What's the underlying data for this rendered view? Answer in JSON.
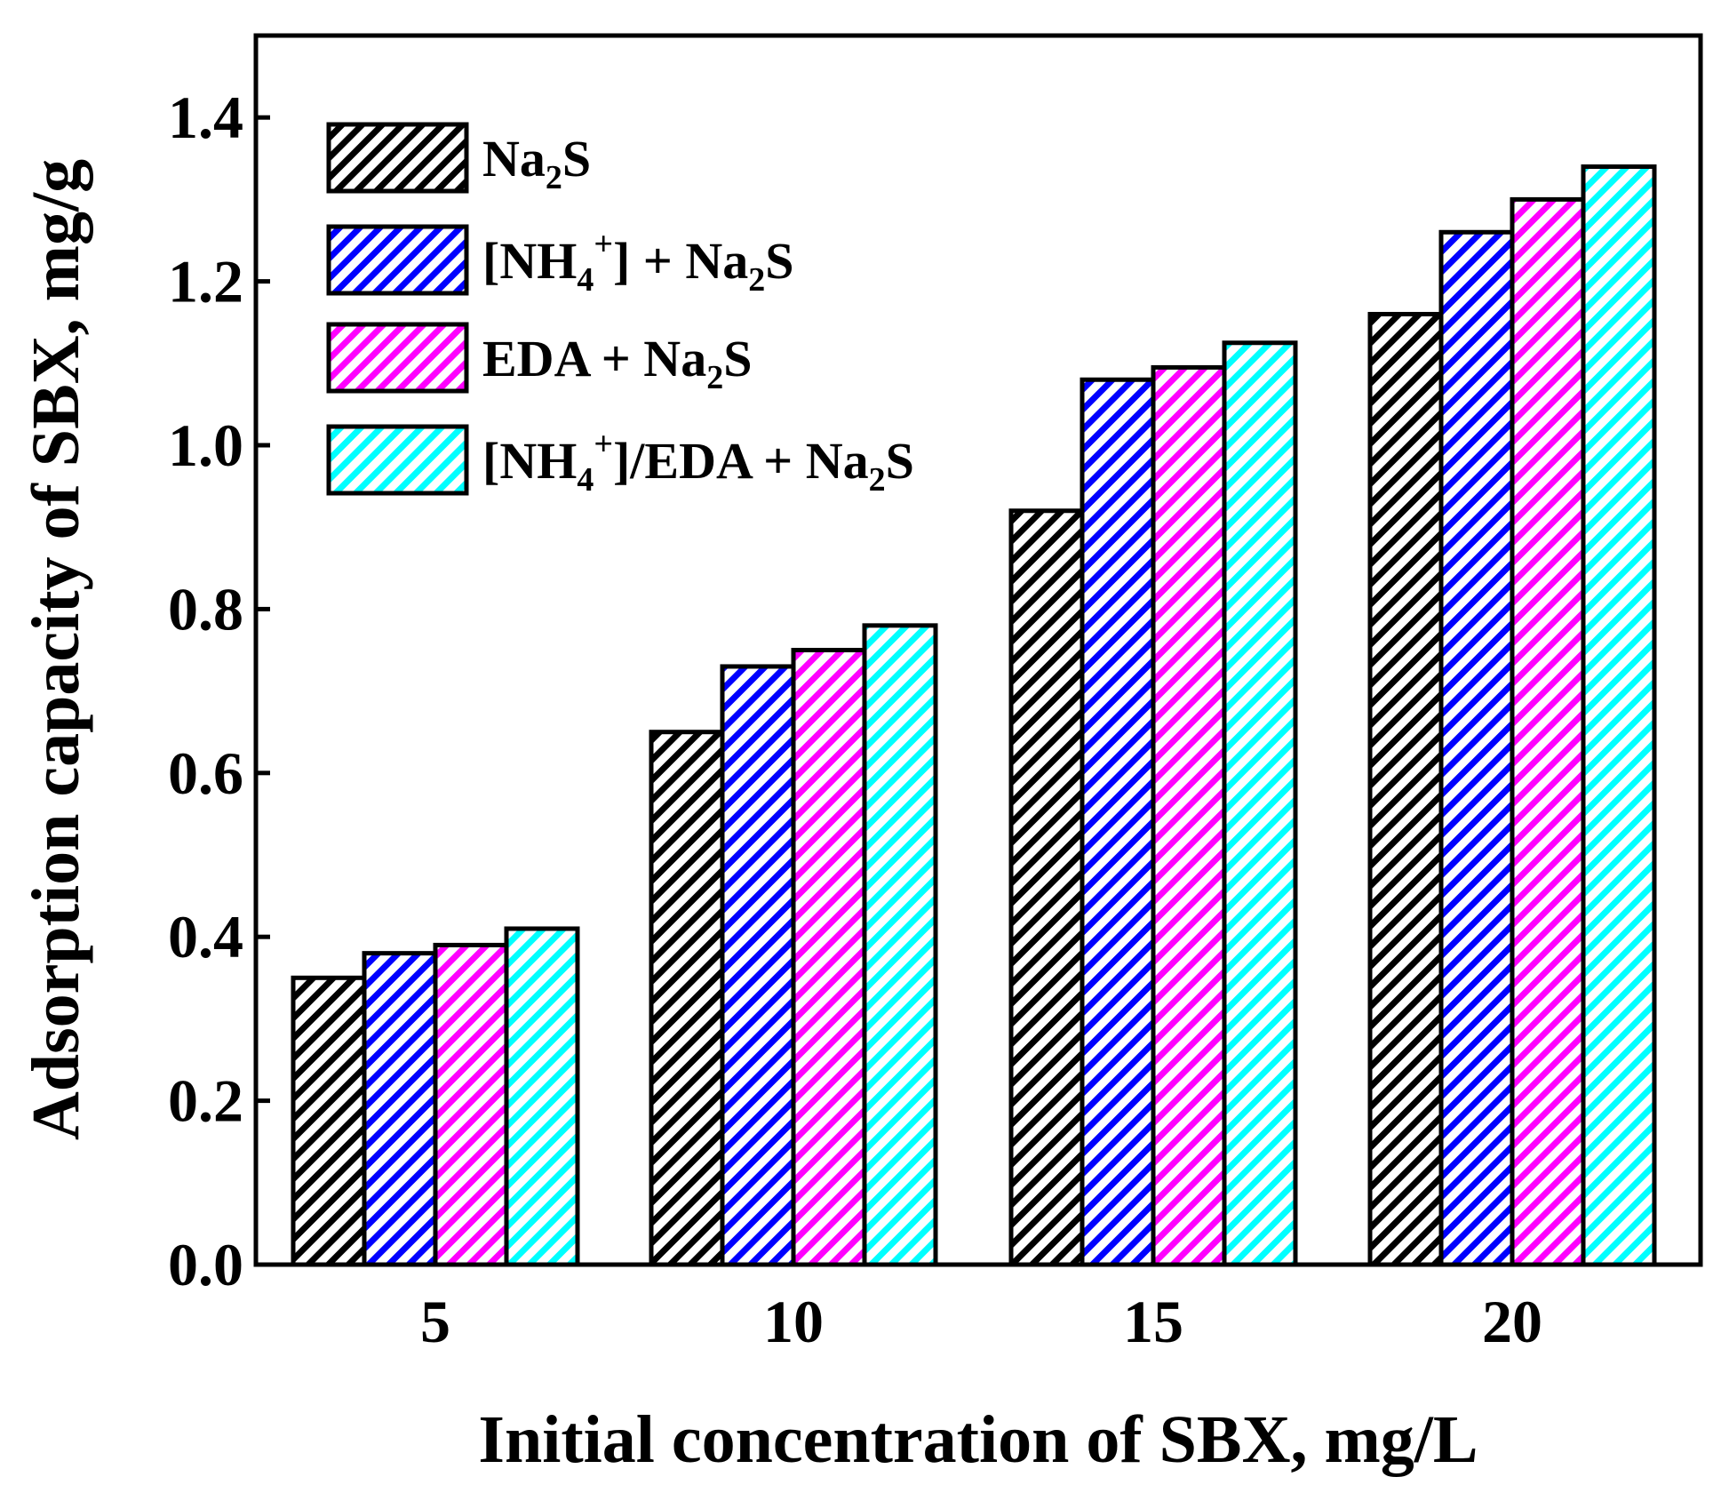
{
  "chart_data": {
    "type": "bar",
    "title": "",
    "xlabel": "Initial concentration of SBX, mg/L",
    "ylabel": "Adsorption capacity of SBX, mg/g",
    "categories": [
      "5",
      "10",
      "15",
      "20"
    ],
    "ylim": [
      0,
      1.5
    ],
    "yticks": [
      "0.0",
      "0.2",
      "0.4",
      "0.6",
      "0.8",
      "1.0",
      "1.2",
      "1.4"
    ],
    "ytick_values": [
      0,
      0.2,
      0.4,
      0.6,
      0.8,
      1.0,
      1.2,
      1.4
    ],
    "grid": false,
    "legend_position": "top-left",
    "series": [
      {
        "name": "Na2S",
        "legend_parts": [
          {
            "t": "Na"
          },
          {
            "t": "2",
            "sub": true
          },
          {
            "t": "S"
          }
        ],
        "color": "#000000",
        "values": [
          0.35,
          0.65,
          0.92,
          1.16
        ]
      },
      {
        "name": "[NH4+] + Na2S",
        "legend_parts": [
          {
            "t": "[NH"
          },
          {
            "t": "4",
            "sub": true
          },
          {
            "t": "+",
            "sup": true
          },
          {
            "t": "] + Na"
          },
          {
            "t": "2",
            "sub": true
          },
          {
            "t": "S"
          }
        ],
        "color": "#0000ff",
        "values": [
          0.38,
          0.73,
          1.08,
          1.26
        ]
      },
      {
        "name": "EDA + Na2S",
        "legend_parts": [
          {
            "t": "EDA + Na"
          },
          {
            "t": "2",
            "sub": true
          },
          {
            "t": "S"
          }
        ],
        "color": "#ff00ff",
        "values": [
          0.39,
          0.75,
          1.095,
          1.3
        ]
      },
      {
        "name": "[NH4+]/EDA + Na2S",
        "legend_parts": [
          {
            "t": "[NH"
          },
          {
            "t": "4",
            "sub": true
          },
          {
            "t": "+",
            "sup": true
          },
          {
            "t": "]/EDA + Na"
          },
          {
            "t": "2",
            "sub": true
          },
          {
            "t": "S"
          }
        ],
        "color": "#00ffff",
        "values": [
          0.41,
          0.78,
          1.125,
          1.34
        ]
      }
    ]
  }
}
